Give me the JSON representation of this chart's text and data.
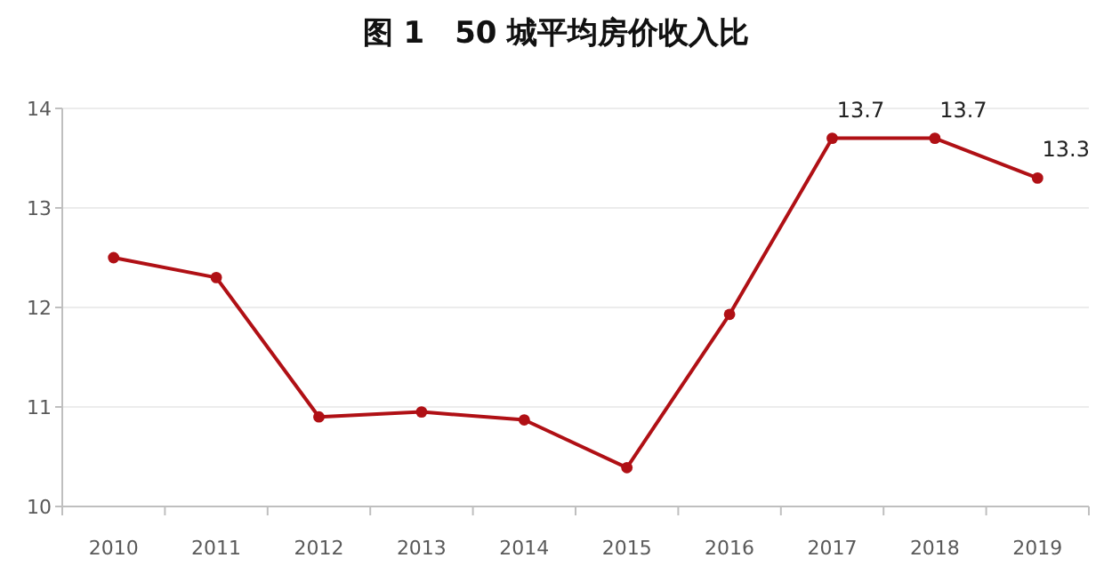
{
  "chart_data": {
    "type": "line",
    "title": "图 1　50 城平均房价收入比",
    "categories": [
      "2010",
      "2011",
      "2012",
      "2013",
      "2014",
      "2015",
      "2016",
      "2017",
      "2018",
      "2019"
    ],
    "series": [
      {
        "color": "#b01015",
        "values": [
          12.5,
          12.3,
          10.9,
          10.95,
          10.87,
          10.39,
          11.93,
          13.7,
          13.7,
          13.3
        ],
        "value_labels": [
          null,
          null,
          null,
          null,
          null,
          null,
          null,
          "13.7",
          "13.7",
          "13.3"
        ]
      }
    ],
    "ylim": [
      10,
      14
    ],
    "yticks": [
      10,
      11,
      12,
      13,
      14
    ],
    "grid": "y",
    "marker": "circle",
    "line_style": "solid"
  }
}
